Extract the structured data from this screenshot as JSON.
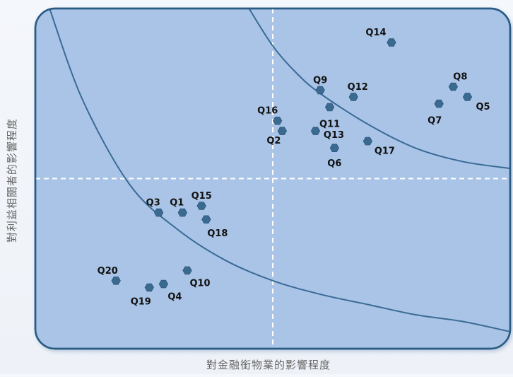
{
  "chart_data": {
    "type": "scatter",
    "title": "",
    "xlabel": "對金融銜物業的影響程度",
    "ylabel": "對利益相關者的影響程度",
    "xlim": [
      0,
      10
    ],
    "ylim": [
      0,
      10
    ],
    "quadrant_divider": {
      "x": 5,
      "y": 5
    },
    "grid": false,
    "colors": {
      "plot_bg": "#a9c4e6",
      "border": "#2b5a83",
      "curve": "#3a6a95",
      "point": "#3b6a90",
      "divider": "#ffffff"
    },
    "points": [
      {
        "label": "Q1",
        "x": 3.1,
        "y": 4.0
      },
      {
        "label": "Q2",
        "x": 5.2,
        "y": 6.4
      },
      {
        "label": "Q3",
        "x": 2.6,
        "y": 4.0
      },
      {
        "label": "Q4",
        "x": 2.7,
        "y": 1.9
      },
      {
        "label": "Q5",
        "x": 9.1,
        "y": 7.4
      },
      {
        "label": "Q6",
        "x": 6.3,
        "y": 5.9
      },
      {
        "label": "Q7",
        "x": 8.5,
        "y": 7.2
      },
      {
        "label": "Q8",
        "x": 8.8,
        "y": 7.7
      },
      {
        "label": "Q9",
        "x": 6.0,
        "y": 7.6
      },
      {
        "label": "Q10",
        "x": 3.2,
        "y": 2.3
      },
      {
        "label": "Q11",
        "x": 6.2,
        "y": 7.1
      },
      {
        "label": "Q12",
        "x": 6.7,
        "y": 7.4
      },
      {
        "label": "Q13",
        "x": 5.9,
        "y": 6.4
      },
      {
        "label": "Q14",
        "x": 7.5,
        "y": 9.0
      },
      {
        "label": "Q15",
        "x": 3.5,
        "y": 4.2
      },
      {
        "label": "Q16",
        "x": 5.1,
        "y": 6.7
      },
      {
        "label": "Q17",
        "x": 7.0,
        "y": 6.1
      },
      {
        "label": "Q18",
        "x": 3.6,
        "y": 3.8
      },
      {
        "label": "Q19",
        "x": 2.4,
        "y": 1.8
      },
      {
        "label": "Q20",
        "x": 1.7,
        "y": 2.0
      }
    ],
    "curves": [
      {
        "name": "",
        "x": [
          0.3,
          1.0,
          2.0,
          3.0,
          4.0,
          5.0,
          6.0,
          7.0,
          8.0,
          9.0,
          10.0
        ],
        "y": [
          10.0,
          7.3,
          4.8,
          3.5,
          2.6,
          2.0,
          1.6,
          1.3,
          1.0,
          0.8,
          0.5
        ]
      },
      {
        "name": "",
        "x": [
          4.5,
          5.0,
          5.5,
          6.0,
          7.0,
          8.0,
          9.0,
          10.0
        ],
        "y": [
          10.0,
          8.9,
          8.1,
          7.5,
          6.6,
          5.9,
          5.5,
          5.3
        ]
      }
    ]
  }
}
